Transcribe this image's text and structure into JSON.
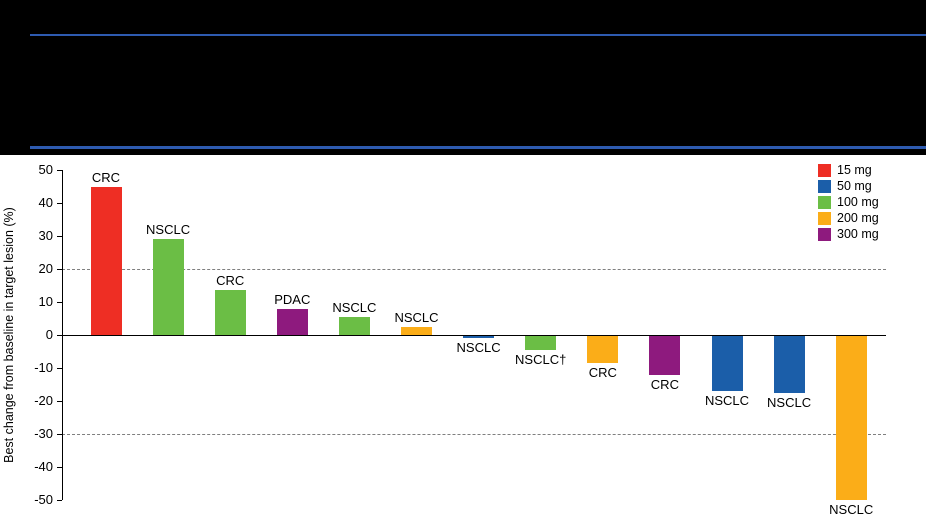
{
  "colors": {
    "page_background": "#000000",
    "panel_background": "#FFFFFF",
    "header_rule": "#2E5BB0",
    "axis": "#000000",
    "reference_line": "#7F7F7F",
    "text": "#000000"
  },
  "chart_data": {
    "type": "bar",
    "title": "",
    "ylabel": "Best change from baseline in target lesion (%)",
    "ylim": [
      -50,
      50
    ],
    "yticks": [
      50,
      40,
      30,
      20,
      10,
      0,
      -10,
      -20,
      -30,
      -40,
      -50
    ],
    "reference_lines": [
      20,
      -30
    ],
    "legend_position": "top-right",
    "legend": [
      {
        "label": "15 mg",
        "color": "#EE2E24"
      },
      {
        "label": "50 mg",
        "color": "#1B5EA9"
      },
      {
        "label": "100 mg",
        "color": "#6BBE45"
      },
      {
        "label": "200 mg",
        "color": "#FBAD18"
      },
      {
        "label": "300 mg",
        "color": "#8E1A7E"
      }
    ],
    "bars": [
      {
        "label": "CRC",
        "dose": "15 mg",
        "value": 45
      },
      {
        "label": "NSCLC",
        "dose": "100 mg",
        "value": 29
      },
      {
        "label": "CRC",
        "dose": "100 mg",
        "value": 13.5
      },
      {
        "label": "PDAC",
        "dose": "300 mg",
        "value": 8
      },
      {
        "label": "NSCLC",
        "dose": "100 mg",
        "value": 5.5
      },
      {
        "label": "NSCLC",
        "dose": "200 mg",
        "value": 2.5
      },
      {
        "label": "NSCLC",
        "dose": "50 mg",
        "value": -1
      },
      {
        "label": "NSCLC†",
        "dose": "100 mg",
        "value": -4.5
      },
      {
        "label": "CRC",
        "dose": "200 mg",
        "value": -8.5
      },
      {
        "label": "CRC",
        "dose": "300 mg",
        "value": -12
      },
      {
        "label": "NSCLC",
        "dose": "50 mg",
        "value": -17
      },
      {
        "label": "NSCLC",
        "dose": "50 mg",
        "value": -17.5
      },
      {
        "label": "NSCLC",
        "dose": "200 mg",
        "value": -50
      }
    ]
  }
}
